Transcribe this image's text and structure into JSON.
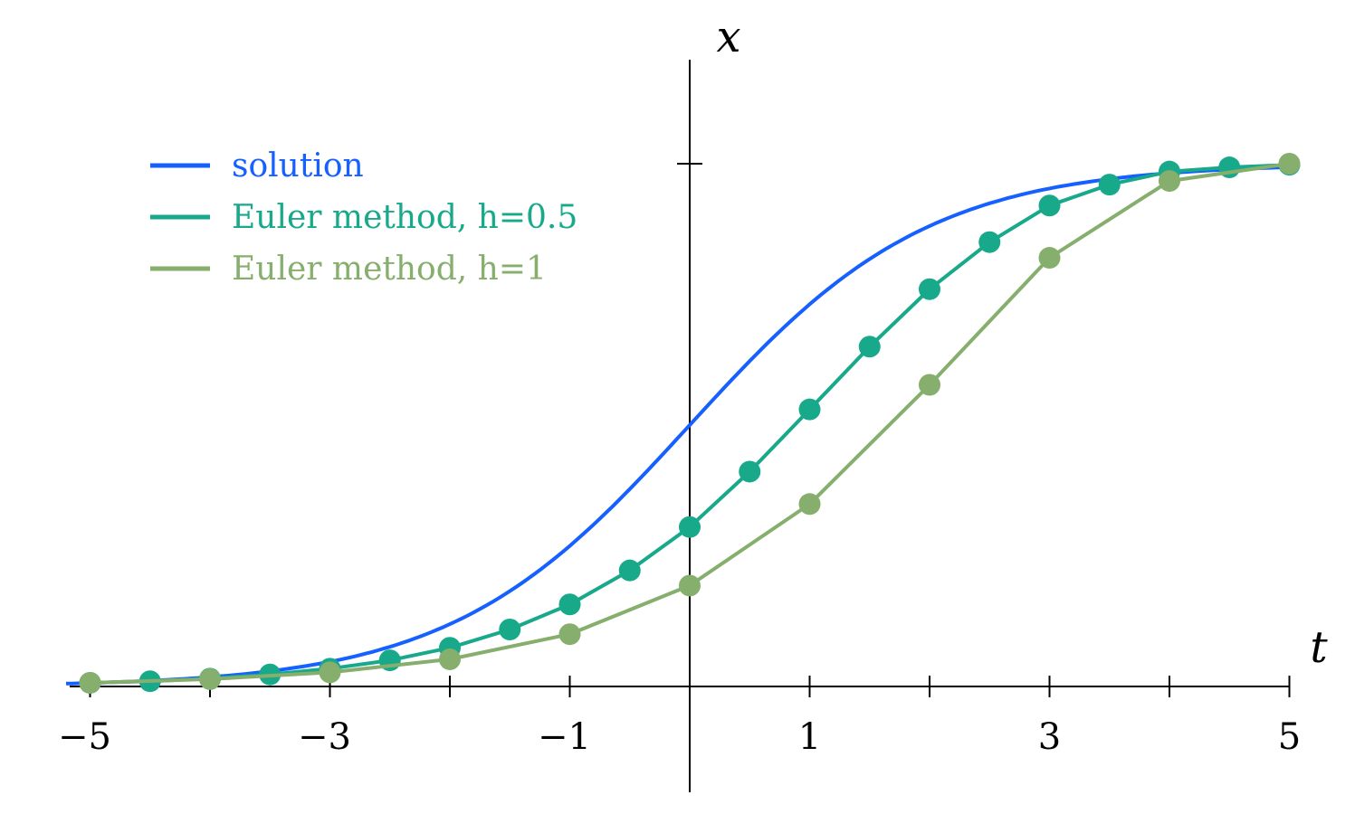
{
  "chart_data": {
    "type": "line",
    "xlabel": "t",
    "ylabel": "x",
    "xlim": [
      -5.2,
      5.2
    ],
    "ylim": [
      -0.02,
      1.2
    ],
    "xticks": [
      -5,
      -4,
      -3,
      -2,
      -1,
      1,
      2,
      3,
      4,
      5
    ],
    "xtick_labels": [
      {
        "value": -5,
        "label": "−5"
      },
      {
        "value": -3,
        "label": "−3"
      },
      {
        "value": -1,
        "label": "−1"
      },
      {
        "value": 1,
        "label": "1"
      },
      {
        "value": 3,
        "label": "3"
      },
      {
        "value": 5,
        "label": "5"
      }
    ],
    "yticks": [
      1
    ],
    "legend_position": "top-left",
    "series": [
      {
        "name": "solution",
        "color": "#1560ff",
        "style": "line",
        "x": [
          -5,
          -4.5,
          -4,
          -3.5,
          -3,
          -2.5,
          -2,
          -1.5,
          -1,
          -0.5,
          0,
          0.5,
          1,
          1.5,
          2,
          2.5,
          3,
          3.5,
          4,
          4.5,
          5
        ],
        "values": [
          0.007,
          0.011,
          0.018,
          0.029,
          0.047,
          0.076,
          0.119,
          0.182,
          0.269,
          0.378,
          0.5,
          0.622,
          0.731,
          0.818,
          0.881,
          0.924,
          0.953,
          0.971,
          0.982,
          0.989,
          0.993
        ]
      },
      {
        "name": "Euler method, h=0.5",
        "color": "#17a98a",
        "style": "line+markers",
        "x": [
          -5,
          -4.5,
          -4,
          -3.5,
          -3,
          -2.5,
          -2,
          -1.5,
          -1,
          -0.5,
          0,
          0.5,
          1,
          1.5,
          2,
          2.5,
          3,
          3.5,
          4,
          4.5,
          5
        ],
        "values": [
          0.007,
          0.01,
          0.015,
          0.023,
          0.034,
          0.05,
          0.074,
          0.109,
          0.157,
          0.222,
          0.305,
          0.411,
          0.53,
          0.65,
          0.76,
          0.85,
          0.92,
          0.96,
          0.985,
          0.993,
          0.998
        ]
      },
      {
        "name": "Euler method, h=1",
        "color": "#86ae6c",
        "style": "line+markers",
        "x": [
          -5,
          -4,
          -3,
          -2,
          -1,
          0,
          1,
          2,
          3,
          4,
          5
        ],
        "values": [
          0.007,
          0.014,
          0.027,
          0.052,
          0.1,
          0.193,
          0.349,
          0.577,
          0.82,
          0.967,
          1.0
        ]
      }
    ]
  }
}
